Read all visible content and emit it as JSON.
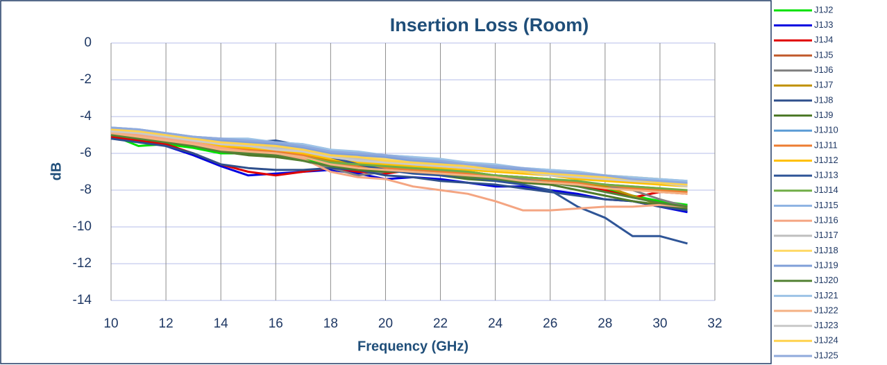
{
  "chart_data": {
    "type": "line",
    "title": "Insertion Loss (Room)",
    "x_label": "Frequency (GHz)",
    "y_label": "dB",
    "x": [
      10,
      11,
      12,
      13,
      14,
      15,
      16,
      17,
      18,
      19,
      20,
      21,
      22,
      23,
      24,
      25,
      26,
      27,
      28,
      29,
      30,
      31
    ],
    "xlim": [
      10,
      32
    ],
    "xticks": [
      10,
      12,
      14,
      16,
      18,
      20,
      22,
      24,
      26,
      28,
      30,
      32
    ],
    "ylim": [
      -14,
      0
    ],
    "yticks": [
      0,
      -2,
      -4,
      -6,
      -8,
      -10,
      -12,
      -14
    ],
    "grid": true,
    "legend": "right",
    "series": [
      {
        "name": "J1J2",
        "color": "#00e000",
        "values": [
          -5.0,
          -5.6,
          -5.5,
          -5.7,
          -6.0,
          -6.0,
          -6.1,
          -6.3,
          -6.6,
          -6.8,
          -6.9,
          -7.0,
          -7.1,
          -7.2,
          -7.4,
          -7.5,
          -7.6,
          -7.7,
          -7.9,
          -8.3,
          -8.6,
          -8.8
        ]
      },
      {
        "name": "J1J3",
        "color": "#0000e0",
        "values": [
          -5.2,
          -5.3,
          -5.6,
          -6.1,
          -6.7,
          -7.2,
          -7.1,
          -7.0,
          -6.9,
          -7.1,
          -7.4,
          -7.3,
          -7.4,
          -7.6,
          -7.8,
          -7.8,
          -8.0,
          -8.2,
          -8.5,
          -8.6,
          -8.9,
          -9.2
        ]
      },
      {
        "name": "J1J4",
        "color": "#e00000",
        "values": [
          -5.1,
          -5.3,
          -5.5,
          -6.0,
          -6.6,
          -7.0,
          -7.2,
          -7.0,
          -6.8,
          -7.0,
          -7.1,
          -6.9,
          -7.0,
          -7.2,
          -7.3,
          -7.4,
          -7.6,
          -7.7,
          -8.0,
          -8.4,
          -8.1,
          -8.2
        ]
      },
      {
        "name": "J1J5",
        "color": "#c0582a",
        "values": [
          -5.0,
          -5.1,
          -5.3,
          -5.5,
          -5.8,
          -6.0,
          -6.0,
          -6.2,
          -6.5,
          -6.6,
          -6.8,
          -6.9,
          -7.0,
          -7.0,
          -7.2,
          -7.3,
          -7.4,
          -7.6,
          -7.7,
          -7.8,
          -7.9,
          -8.1
        ]
      },
      {
        "name": "J1J6",
        "color": "#808080",
        "values": [
          -4.9,
          -5.0,
          -5.2,
          -5.5,
          -5.9,
          -6.0,
          -6.1,
          -6.4,
          -6.8,
          -7.2,
          -7.0,
          -7.0,
          -7.1,
          -7.2,
          -7.3,
          -7.4,
          -7.5,
          -7.6,
          -7.8,
          -8.0,
          -8.5,
          -8.9
        ]
      },
      {
        "name": "J1J7",
        "color": "#c09000",
        "values": [
          -4.8,
          -5.0,
          -5.2,
          -5.4,
          -5.7,
          -5.8,
          -5.9,
          -6.1,
          -6.4,
          -6.6,
          -6.7,
          -6.8,
          -6.9,
          -7.0,
          -7.2,
          -7.3,
          -7.4,
          -7.6,
          -7.8,
          -8.3,
          -8.8,
          -8.9
        ]
      },
      {
        "name": "J1J8",
        "color": "#2e4f8c",
        "values": [
          -5.2,
          -5.4,
          -5.6,
          -6.0,
          -6.6,
          -6.8,
          -6.9,
          -6.9,
          -6.8,
          -6.9,
          -7.2,
          -7.3,
          -7.5,
          -7.6,
          -7.7,
          -7.9,
          -8.1,
          -8.3,
          -8.5,
          -8.6,
          -8.9,
          -9.1
        ]
      },
      {
        "name": "J1J9",
        "color": "#4f7a2a",
        "values": [
          -5.0,
          -5.2,
          -5.4,
          -5.6,
          -5.9,
          -6.1,
          -6.2,
          -6.4,
          -6.7,
          -6.9,
          -7.0,
          -7.0,
          -7.2,
          -7.4,
          -7.5,
          -7.6,
          -7.7,
          -8.0,
          -8.3,
          -8.6,
          -8.8,
          -9.0
        ]
      },
      {
        "name": "J1J10",
        "color": "#5b9bd5",
        "values": [
          -4.7,
          -4.8,
          -5.0,
          -5.2,
          -5.3,
          -5.3,
          -5.5,
          -5.6,
          -5.9,
          -6.0,
          -6.2,
          -6.3,
          -6.5,
          -6.6,
          -6.7,
          -6.9,
          -7.0,
          -7.1,
          -7.3,
          -7.4,
          -7.5,
          -7.6
        ]
      },
      {
        "name": "J1J11",
        "color": "#ed7d31",
        "values": [
          -4.9,
          -5.0,
          -5.2,
          -5.4,
          -5.7,
          -5.8,
          -5.9,
          -6.1,
          -6.5,
          -6.7,
          -6.8,
          -6.9,
          -7.0,
          -7.1,
          -7.2,
          -7.3,
          -7.5,
          -7.6,
          -7.7,
          -7.9,
          -8.0,
          -8.1
        ]
      },
      {
        "name": "J1J12",
        "color": "#ffc000",
        "values": [
          -4.8,
          -4.9,
          -5.1,
          -5.3,
          -5.6,
          -5.7,
          -5.8,
          -6.0,
          -6.3,
          -6.5,
          -6.6,
          -6.7,
          -6.8,
          -6.9,
          -7.0,
          -7.1,
          -7.2,
          -7.4,
          -7.5,
          -7.6,
          -7.7,
          -7.8
        ]
      },
      {
        "name": "J1J13",
        "color": "#2f5597",
        "values": [
          -4.6,
          -4.9,
          -5.2,
          -5.1,
          -5.3,
          -5.4,
          -5.3,
          -5.6,
          -6.2,
          -6.6,
          -6.9,
          -7.1,
          -7.2,
          -7.3,
          -7.5,
          -7.7,
          -8.0,
          -8.9,
          -9.5,
          -10.5,
          -10.5,
          -10.9
        ]
      },
      {
        "name": "J1J14",
        "color": "#70ad47",
        "values": [
          -5.0,
          -5.1,
          -5.3,
          -5.5,
          -5.8,
          -5.9,
          -6.0,
          -6.2,
          -6.5,
          -6.6,
          -6.7,
          -6.8,
          -6.9,
          -7.0,
          -7.2,
          -7.3,
          -7.4,
          -7.5,
          -7.7,
          -7.8,
          -7.9,
          -8.0
        ]
      },
      {
        "name": "J1J15",
        "color": "#8fb4e3",
        "values": [
          -4.6,
          -4.7,
          -4.9,
          -5.1,
          -5.2,
          -5.3,
          -5.4,
          -5.5,
          -5.8,
          -6.0,
          -6.1,
          -6.2,
          -6.4,
          -6.5,
          -6.7,
          -6.8,
          -6.9,
          -7.0,
          -7.2,
          -7.3,
          -7.4,
          -7.5
        ]
      },
      {
        "name": "J1J16",
        "color": "#f4a582",
        "values": [
          -4.9,
          -5.0,
          -5.2,
          -5.4,
          -5.7,
          -5.9,
          -6.0,
          -6.3,
          -7.0,
          -7.3,
          -7.4,
          -7.8,
          -8.0,
          -8.2,
          -8.6,
          -9.1,
          -9.1,
          -9.0,
          -8.9,
          -8.9,
          -8.8,
          -8.9
        ]
      },
      {
        "name": "J1J17",
        "color": "#bfbfbf",
        "values": [
          -4.8,
          -4.9,
          -5.1,
          -5.3,
          -5.5,
          -5.6,
          -5.7,
          -5.9,
          -6.2,
          -6.3,
          -6.4,
          -6.6,
          -6.7,
          -6.8,
          -6.9,
          -7.0,
          -7.1,
          -7.2,
          -7.3,
          -7.4,
          -7.5,
          -7.7
        ]
      },
      {
        "name": "J1J18",
        "color": "#ffd966",
        "values": [
          -4.7,
          -4.9,
          -5.0,
          -5.2,
          -5.4,
          -5.5,
          -5.6,
          -5.8,
          -6.1,
          -6.2,
          -6.3,
          -6.5,
          -6.6,
          -6.7,
          -6.8,
          -6.9,
          -7.0,
          -7.1,
          -7.2,
          -7.3,
          -7.4,
          -7.6
        ]
      },
      {
        "name": "J1J19",
        "color": "#7f9fd8",
        "values": [
          -4.7,
          -4.8,
          -5.0,
          -5.2,
          -5.3,
          -5.4,
          -5.5,
          -5.7,
          -6.0,
          -6.1,
          -6.2,
          -6.4,
          -6.5,
          -6.7,
          -6.8,
          -6.9,
          -7.0,
          -7.2,
          -7.3,
          -7.4,
          -7.6,
          -7.7
        ]
      },
      {
        "name": "J1J20",
        "color": "#548235",
        "values": [
          -5.0,
          -5.2,
          -5.4,
          -5.6,
          -5.9,
          -6.0,
          -6.1,
          -6.4,
          -6.7,
          -6.8,
          -6.9,
          -7.0,
          -7.1,
          -7.3,
          -7.4,
          -7.5,
          -7.6,
          -7.8,
          -8.1,
          -8.4,
          -8.7,
          -8.9
        ]
      },
      {
        "name": "J1J21",
        "color": "#9dc3e6",
        "values": [
          -4.6,
          -4.7,
          -4.9,
          -5.1,
          -5.2,
          -5.2,
          -5.4,
          -5.5,
          -5.8,
          -5.9,
          -6.1,
          -6.2,
          -6.3,
          -6.5,
          -6.6,
          -6.8,
          -6.9,
          -7.0,
          -7.2,
          -7.3,
          -7.4,
          -7.5
        ]
      },
      {
        "name": "J1J22",
        "color": "#f4b183",
        "values": [
          -4.9,
          -5.1,
          -5.3,
          -5.5,
          -5.8,
          -5.9,
          -6.0,
          -6.2,
          -6.6,
          -6.8,
          -6.9,
          -7.0,
          -7.1,
          -7.2,
          -7.3,
          -7.5,
          -7.6,
          -7.7,
          -7.9,
          -8.0,
          -8.1,
          -8.2
        ]
      },
      {
        "name": "J1J23",
        "color": "#c9c9c9",
        "values": [
          -4.8,
          -4.9,
          -5.1,
          -5.3,
          -5.5,
          -5.6,
          -5.8,
          -5.9,
          -6.2,
          -6.4,
          -6.5,
          -6.6,
          -6.7,
          -6.8,
          -6.9,
          -7.0,
          -7.2,
          -7.3,
          -7.4,
          -7.5,
          -7.6,
          -7.8
        ]
      },
      {
        "name": "J1J24",
        "color": "#ffd24d",
        "values": [
          -4.7,
          -4.8,
          -5.0,
          -5.2,
          -5.4,
          -5.5,
          -5.6,
          -5.8,
          -6.1,
          -6.2,
          -6.4,
          -6.5,
          -6.6,
          -6.7,
          -6.9,
          -7.0,
          -7.1,
          -7.2,
          -7.3,
          -7.4,
          -7.6,
          -7.7
        ]
      },
      {
        "name": "J1J25",
        "color": "#8faadc",
        "values": [
          -4.6,
          -4.7,
          -4.9,
          -5.1,
          -5.2,
          -5.3,
          -5.4,
          -5.6,
          -5.9,
          -6.0,
          -6.1,
          -6.3,
          -6.4,
          -6.6,
          -6.7,
          -6.8,
          -7.0,
          -7.1,
          -7.2,
          -7.4,
          -7.5,
          -7.6
        ]
      }
    ]
  }
}
